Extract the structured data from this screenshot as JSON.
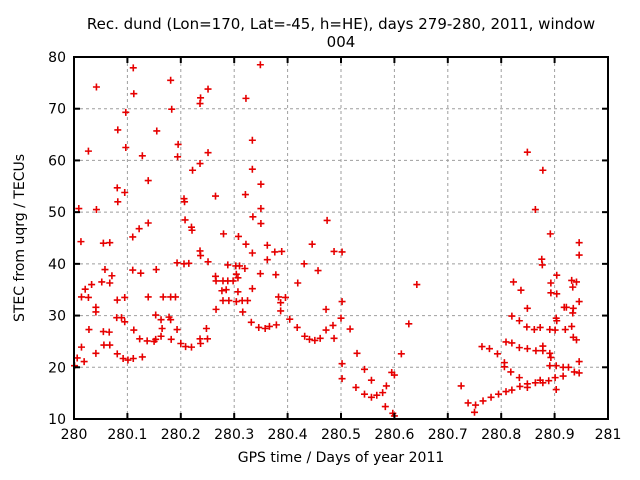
{
  "chart_data": {
    "type": "scatter",
    "title": "Rec. dund (Lon=170, Lat=-45, h=HE), days 279-280, 2011, window 004",
    "xlabel": "GPS time / Days of year 2011",
    "ylabel": "STEC from uqrg / TECUs",
    "xlim": [
      280,
      281
    ],
    "ylim": [
      10,
      80
    ],
    "grid": true,
    "legend": "none",
    "marker": {
      "shape": "plus",
      "color": "#e60000",
      "size": 7
    },
    "grid_color": "#9e9e9e",
    "border_color": "#000000",
    "xticks": [
      {
        "v": 280.0,
        "label": "280"
      },
      {
        "v": 280.1,
        "label": "280.1"
      },
      {
        "v": 280.2,
        "label": "280.2"
      },
      {
        "v": 280.3,
        "label": "280.3"
      },
      {
        "v": 280.4,
        "label": "280.4"
      },
      {
        "v": 280.5,
        "label": "280.5"
      },
      {
        "v": 280.6,
        "label": "280.6"
      },
      {
        "v": 280.7,
        "label": "280.7"
      },
      {
        "v": 280.8,
        "label": "280.8"
      },
      {
        "v": 280.9,
        "label": "280.9"
      },
      {
        "v": 281.0,
        "label": "281"
      }
    ],
    "yticks": [
      {
        "v": 10,
        "label": "10"
      },
      {
        "v": 20,
        "label": "20"
      },
      {
        "v": 30,
        "label": "30"
      },
      {
        "v": 40,
        "label": "40"
      },
      {
        "v": 50,
        "label": "50"
      },
      {
        "v": 60,
        "label": "60"
      },
      {
        "v": 70,
        "label": "70"
      },
      {
        "v": 80,
        "label": "80"
      }
    ],
    "points": [
      [
        280.111,
        77.9
      ],
      [
        280.042,
        74.2
      ],
      [
        280.181,
        75.5
      ],
      [
        280.112,
        72.9
      ],
      [
        280.237,
        72.1
      ],
      [
        280.236,
        71.0
      ],
      [
        280.251,
        73.8
      ],
      [
        280.183,
        69.9
      ],
      [
        280.097,
        69.3
      ],
      [
        280.082,
        65.9
      ],
      [
        280.155,
        65.7
      ],
      [
        280.027,
        61.8
      ],
      [
        280.097,
        62.5
      ],
      [
        280.195,
        63.1
      ],
      [
        280.128,
        60.9
      ],
      [
        280.194,
        60.7
      ],
      [
        280.236,
        59.4
      ],
      [
        280.222,
        58.1
      ],
      [
        280.139,
        56.1
      ],
      [
        280.081,
        54.7
      ],
      [
        280.095,
        53.8
      ],
      [
        280.082,
        52.0
      ],
      [
        280.009,
        50.7
      ],
      [
        280.042,
        50.5
      ],
      [
        280.206,
        52.6
      ],
      [
        280.207,
        52.0
      ],
      [
        280.208,
        48.5
      ],
      [
        280.22,
        47.1
      ],
      [
        280.221,
        46.5
      ],
      [
        280.139,
        47.9
      ],
      [
        280.122,
        46.8
      ],
      [
        280.11,
        45.2
      ],
      [
        280.349,
        78.5
      ],
      [
        280.322,
        72.0
      ],
      [
        280.334,
        63.9
      ],
      [
        280.251,
        61.5
      ],
      [
        280.334,
        58.3
      ],
      [
        280.35,
        55.4
      ],
      [
        280.321,
        53.4
      ],
      [
        280.265,
        53.1
      ],
      [
        280.35,
        50.7
      ],
      [
        280.335,
        49.1
      ],
      [
        280.35,
        47.8
      ],
      [
        280.474,
        48.4
      ],
      [
        280.28,
        45.8
      ],
      [
        280.308,
        45.3
      ],
      [
        280.849,
        61.6
      ],
      [
        280.878,
        58.1
      ],
      [
        280.864,
        50.5
      ],
      [
        280.892,
        45.8
      ],
      [
        280.013,
        44.3
      ],
      [
        280.055,
        44.0
      ],
      [
        280.067,
        44.1
      ],
      [
        280.236,
        42.5
      ],
      [
        280.237,
        41.6
      ],
      [
        280.193,
        40.2
      ],
      [
        280.206,
        40.0
      ],
      [
        280.215,
        40.1
      ],
      [
        280.058,
        38.9
      ],
      [
        280.11,
        38.8
      ],
      [
        280.125,
        38.2
      ],
      [
        280.154,
        38.9
      ],
      [
        280.071,
        37.7
      ],
      [
        280.052,
        36.5
      ],
      [
        280.067,
        36.3
      ],
      [
        280.033,
        36.0
      ],
      [
        280.021,
        35.1
      ],
      [
        280.014,
        33.6
      ],
      [
        280.027,
        33.5
      ],
      [
        280.081,
        33.0
      ],
      [
        280.095,
        33.5
      ],
      [
        280.139,
        33.6
      ],
      [
        280.167,
        33.6
      ],
      [
        280.181,
        33.6
      ],
      [
        280.19,
        33.6
      ],
      [
        280.041,
        31.6
      ],
      [
        280.041,
        30.7
      ],
      [
        280.08,
        29.6
      ],
      [
        280.089,
        29.6
      ],
      [
        280.095,
        28.8
      ],
      [
        280.153,
        30.1
      ],
      [
        280.163,
        29.2
      ],
      [
        280.178,
        29.7
      ],
      [
        280.181,
        29.2
      ],
      [
        280.165,
        27.5
      ],
      [
        280.112,
        27.2
      ],
      [
        280.028,
        27.3
      ],
      [
        280.055,
        26.9
      ],
      [
        280.066,
        26.8
      ],
      [
        280.193,
        27.3
      ],
      [
        280.123,
        25.5
      ],
      [
        280.137,
        25.1
      ],
      [
        280.153,
        25.4
      ],
      [
        280.15,
        25.0
      ],
      [
        280.163,
        26.0
      ],
      [
        280.182,
        25.4
      ],
      [
        280.2,
        24.6
      ],
      [
        280.209,
        24.0
      ],
      [
        280.22,
        23.9
      ],
      [
        280.236,
        25.5
      ],
      [
        280.237,
        24.6
      ],
      [
        280.248,
        27.5
      ],
      [
        280.25,
        25.5
      ],
      [
        280.014,
        23.9
      ],
      [
        280.056,
        24.3
      ],
      [
        280.067,
        24.3
      ],
      [
        280.041,
        22.7
      ],
      [
        280.006,
        21.8
      ],
      [
        280.019,
        21.1
      ],
      [
        280.081,
        22.6
      ],
      [
        280.092,
        21.7
      ],
      [
        280.101,
        21.4
      ],
      [
        280.111,
        21.7
      ],
      [
        280.128,
        22.0
      ],
      [
        280.001,
        20.3
      ],
      [
        280.322,
        43.8
      ],
      [
        280.362,
        43.6
      ],
      [
        280.334,
        42.1
      ],
      [
        280.376,
        42.3
      ],
      [
        280.389,
        42.4
      ],
      [
        280.446,
        43.8
      ],
      [
        280.487,
        42.4
      ],
      [
        280.362,
        40.8
      ],
      [
        280.251,
        40.4
      ],
      [
        280.288,
        39.8
      ],
      [
        280.303,
        39.6
      ],
      [
        280.31,
        39.6
      ],
      [
        280.32,
        39.1
      ],
      [
        280.304,
        38.0
      ],
      [
        280.349,
        38.1
      ],
      [
        280.378,
        37.9
      ],
      [
        280.265,
        37.6
      ],
      [
        280.266,
        36.7
      ],
      [
        280.279,
        36.7
      ],
      [
        280.288,
        36.7
      ],
      [
        280.298,
        36.7
      ],
      [
        280.307,
        37.3
      ],
      [
        280.419,
        36.3
      ],
      [
        280.457,
        38.7
      ],
      [
        280.431,
        40.0
      ],
      [
        280.277,
        34.8
      ],
      [
        280.285,
        35.0
      ],
      [
        280.307,
        34.6
      ],
      [
        280.334,
        35.2
      ],
      [
        280.279,
        32.9
      ],
      [
        280.29,
        32.9
      ],
      [
        280.304,
        32.7
      ],
      [
        280.315,
        32.9
      ],
      [
        280.325,
        32.9
      ],
      [
        280.383,
        33.6
      ],
      [
        280.396,
        33.5
      ],
      [
        280.387,
        32.5
      ],
      [
        280.266,
        31.2
      ],
      [
        280.316,
        30.7
      ],
      [
        280.387,
        30.9
      ],
      [
        280.472,
        31.2
      ],
      [
        280.332,
        28.7
      ],
      [
        280.404,
        29.3
      ],
      [
        280.346,
        27.7
      ],
      [
        280.358,
        27.5
      ],
      [
        280.366,
        27.9
      ],
      [
        280.379,
        28.2
      ],
      [
        280.418,
        27.7
      ],
      [
        280.432,
        26.0
      ],
      [
        280.441,
        25.4
      ],
      [
        280.451,
        25.2
      ],
      [
        280.461,
        25.6
      ],
      [
        280.472,
        27.2
      ],
      [
        280.485,
        28.1
      ],
      [
        280.487,
        25.6
      ],
      [
        280.502,
        42.3
      ],
      [
        280.502,
        32.7
      ],
      [
        280.642,
        36.0
      ],
      [
        280.627,
        28.4
      ],
      [
        280.5,
        29.5
      ],
      [
        280.517,
        27.4
      ],
      [
        280.53,
        22.7
      ],
      [
        280.613,
        22.6
      ],
      [
        280.502,
        20.7
      ],
      [
        280.544,
        19.6
      ],
      [
        280.595,
        19.0
      ],
      [
        280.6,
        18.5
      ],
      [
        280.557,
        17.5
      ],
      [
        280.502,
        17.8
      ],
      [
        280.528,
        16.1
      ],
      [
        280.544,
        14.8
      ],
      [
        280.557,
        14.2
      ],
      [
        280.567,
        14.6
      ],
      [
        280.578,
        15.1
      ],
      [
        280.585,
        16.4
      ],
      [
        280.583,
        12.4
      ],
      [
        280.597,
        11.1
      ],
      [
        280.6,
        10.6
      ],
      [
        280.725,
        16.4
      ],
      [
        280.738,
        13.1
      ],
      [
        280.75,
        11.3
      ],
      [
        280.946,
        44.1
      ],
      [
        280.946,
        41.7
      ],
      [
        280.876,
        40.9
      ],
      [
        280.877,
        39.8
      ],
      [
        280.904,
        37.8
      ],
      [
        280.823,
        36.5
      ],
      [
        280.893,
        36.3
      ],
      [
        280.932,
        36.8
      ],
      [
        280.941,
        36.5
      ],
      [
        280.837,
        34.9
      ],
      [
        280.893,
        34.4
      ],
      [
        280.904,
        34.2
      ],
      [
        280.934,
        35.5
      ],
      [
        280.918,
        31.6
      ],
      [
        280.922,
        31.6
      ],
      [
        280.935,
        31.4
      ],
      [
        280.946,
        32.7
      ],
      [
        280.934,
        30.5
      ],
      [
        280.849,
        31.4
      ],
      [
        280.82,
        29.9
      ],
      [
        280.834,
        29.0
      ],
      [
        280.848,
        27.8
      ],
      [
        280.862,
        27.3
      ],
      [
        280.873,
        27.7
      ],
      [
        280.891,
        27.3
      ],
      [
        280.901,
        27.2
      ],
      [
        280.903,
        29.5
      ],
      [
        280.904,
        29.0
      ],
      [
        280.92,
        27.3
      ],
      [
        280.932,
        27.9
      ],
      [
        280.935,
        25.8
      ],
      [
        280.941,
        25.3
      ],
      [
        280.764,
        24.0
      ],
      [
        280.778,
        23.6
      ],
      [
        280.809,
        24.9
      ],
      [
        280.82,
        24.7
      ],
      [
        280.834,
        23.8
      ],
      [
        280.849,
        23.6
      ],
      [
        280.865,
        23.2
      ],
      [
        280.878,
        24.1
      ],
      [
        280.878,
        23.2
      ],
      [
        280.891,
        22.7
      ],
      [
        280.893,
        21.9
      ],
      [
        280.793,
        22.6
      ],
      [
        280.806,
        20.9
      ],
      [
        280.806,
        20.1
      ],
      [
        280.946,
        21.1
      ],
      [
        280.891,
        20.3
      ],
      [
        280.903,
        20.3
      ],
      [
        280.916,
        20.0
      ],
      [
        280.926,
        20.0
      ],
      [
        280.937,
        19.1
      ],
      [
        280.946,
        18.9
      ],
      [
        280.818,
        19.1
      ],
      [
        280.834,
        18.0
      ],
      [
        280.849,
        16.8
      ],
      [
        280.835,
        16.3
      ],
      [
        280.849,
        16.1
      ],
      [
        280.864,
        17.0
      ],
      [
        280.873,
        17.5
      ],
      [
        280.878,
        17.0
      ],
      [
        280.889,
        17.4
      ],
      [
        280.901,
        18.0
      ],
      [
        280.916,
        18.3
      ],
      [
        280.903,
        15.7
      ],
      [
        280.809,
        15.3
      ],
      [
        280.82,
        15.6
      ],
      [
        280.795,
        14.8
      ],
      [
        280.781,
        14.2
      ],
      [
        280.766,
        13.5
      ],
      [
        280.752,
        12.7
      ]
    ]
  }
}
